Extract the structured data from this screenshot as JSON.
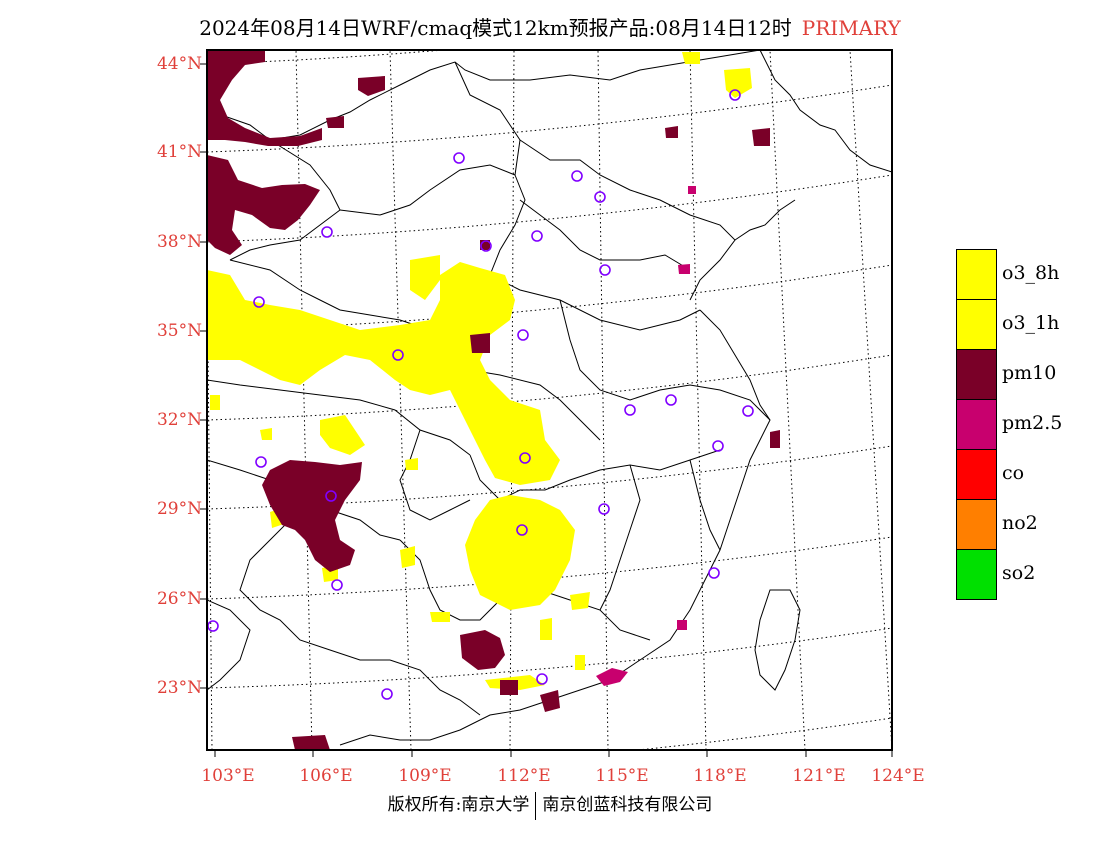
{
  "title": {
    "main": "2024年08月14日WRF/cmaq模式12km预报产品:08月14日12时",
    "tag": "PRIMARY"
  },
  "lat_labels": [
    "44°N",
    "41°N",
    "38°N",
    "35°N",
    "32°N",
    "29°N",
    "26°N",
    "23°N"
  ],
  "lon_labels": [
    "103°E",
    "106°E",
    "109°E",
    "112°E",
    "115°E",
    "118°E",
    "121°E",
    "124°E"
  ],
  "legend": [
    {
      "label": "o3_8h",
      "color": "#ffff00"
    },
    {
      "label": "o3_1h",
      "color": "#ffff00"
    },
    {
      "label": "pm10",
      "color": "#7a0028"
    },
    {
      "label": "pm2.5",
      "color": "#c8006e"
    },
    {
      "label": "co",
      "color": "#ff0000"
    },
    {
      "label": "no2",
      "color": "#ff7f00"
    },
    {
      "label": "so2",
      "color": "#00e000"
    }
  ],
  "footer": {
    "left": "版权所有:南京大学",
    "right": "南京创蓝科技有限公司"
  },
  "colors": {
    "axis_label": "#e0403a",
    "station_marker": "#8000ff"
  }
}
